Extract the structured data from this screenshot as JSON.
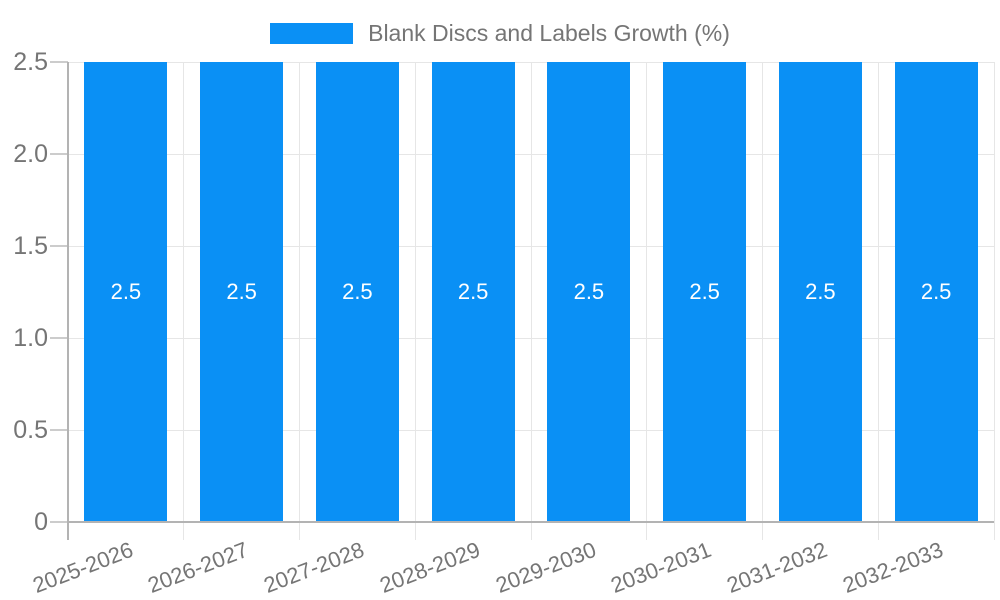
{
  "chart_data": {
    "type": "bar",
    "title": "Blank Discs and Labels Growth (%)",
    "categories": [
      "2025-2026",
      "2026-2027",
      "2027-2028",
      "2028-2029",
      "2029-2030",
      "2030-2031",
      "2031-2032",
      "2032-2033"
    ],
    "values": [
      2.5,
      2.5,
      2.5,
      2.5,
      2.5,
      2.5,
      2.5,
      2.5
    ],
    "value_labels": [
      "2.5",
      "2.5",
      "2.5",
      "2.5",
      "2.5",
      "2.5",
      "2.5",
      "2.5"
    ],
    "xlabel": "",
    "ylabel": "",
    "ylim": [
      0,
      2.5
    ],
    "yticks": [
      {
        "value": 0,
        "label": "0"
      },
      {
        "value": 0.5,
        "label": "0.5"
      },
      {
        "value": 1.0,
        "label": "1.0"
      },
      {
        "value": 1.5,
        "label": "1.5"
      },
      {
        "value": 2.0,
        "label": "2.0"
      },
      {
        "value": 2.5,
        "label": "2.5"
      }
    ],
    "grid": true,
    "legend_position": "top"
  },
  "colors": {
    "bar": "#0a90f5",
    "text": "#757575",
    "grid": "#e6e6e6",
    "axis": "#b3b3b3",
    "tick": "#cccccc",
    "bar_label": "#ffffff",
    "background": "#ffffff"
  }
}
